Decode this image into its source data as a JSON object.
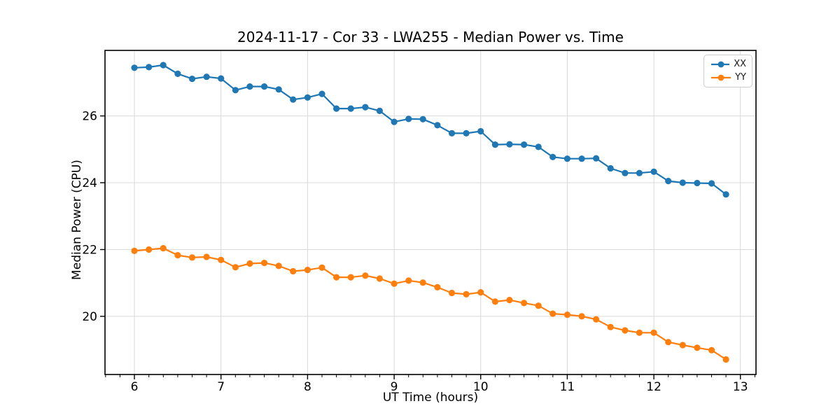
{
  "chart_data": {
    "type": "line",
    "title": "2024-11-17 - Cor 33 - LWA255 - Median Power vs. Time",
    "xlabel": "UT Time (hours)",
    "ylabel": "Median Power (CPU)",
    "xlim": [
      5.66,
      13.18
    ],
    "ylim": [
      18.26,
      27.96
    ],
    "x_ticks": [
      6,
      7,
      8,
      9,
      10,
      11,
      12,
      13
    ],
    "y_ticks": [
      20,
      22,
      24,
      26
    ],
    "x_minor_interval": 0.16667,
    "grid": true,
    "legend_position": "upper right",
    "x": [
      6.0,
      6.167,
      6.333,
      6.5,
      6.667,
      6.833,
      7.0,
      7.167,
      7.333,
      7.5,
      7.667,
      7.833,
      8.0,
      8.167,
      8.333,
      8.5,
      8.667,
      8.833,
      9.0,
      9.167,
      9.333,
      9.5,
      9.667,
      9.833,
      10.0,
      10.167,
      10.333,
      10.5,
      10.667,
      10.833,
      11.0,
      11.167,
      11.333,
      11.5,
      11.667,
      11.833,
      12.0,
      12.167,
      12.333,
      12.5,
      12.667,
      12.833
    ],
    "series": [
      {
        "name": "XX",
        "color": "#1f77b4",
        "values": [
          27.44,
          27.46,
          27.52,
          27.26,
          27.11,
          27.17,
          27.12,
          26.77,
          26.88,
          26.88,
          26.79,
          26.49,
          26.55,
          26.66,
          26.22,
          26.22,
          26.26,
          26.15,
          25.82,
          25.91,
          25.9,
          25.72,
          25.48,
          25.48,
          25.54,
          25.14,
          25.15,
          25.14,
          25.07,
          24.77,
          24.72,
          24.72,
          24.73,
          24.43,
          24.29,
          24.29,
          24.33,
          24.05,
          24.0,
          23.99,
          23.98,
          23.65
        ]
      },
      {
        "name": "YY",
        "color": "#ff7f0e",
        "values": [
          21.96,
          22.0,
          22.04,
          21.83,
          21.76,
          21.78,
          21.69,
          21.47,
          21.58,
          21.6,
          21.51,
          21.35,
          21.39,
          21.46,
          21.17,
          21.17,
          21.22,
          21.13,
          20.98,
          21.07,
          21.01,
          20.87,
          20.7,
          20.66,
          20.72,
          20.44,
          20.49,
          20.4,
          20.32,
          20.08,
          20.05,
          20.0,
          19.91,
          19.68,
          19.58,
          19.51,
          19.51,
          19.23,
          19.14,
          19.06,
          18.99,
          18.71
        ]
      }
    ]
  },
  "colors": {
    "grid": "#d9d9d9",
    "spine": "#000000",
    "background": "#ffffff",
    "legend_border": "#cccccc"
  }
}
